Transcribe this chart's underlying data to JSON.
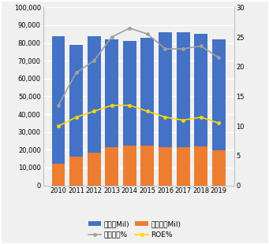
{
  "years": [
    2010,
    2011,
    2012,
    2013,
    2014,
    2015,
    2016,
    2017,
    2018,
    2019
  ],
  "revenue": [
    84000,
    79000,
    84000,
    82000,
    81000,
    83000,
    86000,
    86000,
    85000,
    82000
  ],
  "net_income": [
    12000,
    16000,
    18500,
    21500,
    22500,
    22500,
    21500,
    21500,
    22000,
    19500
  ],
  "net_margin": [
    13.5,
    19.0,
    21.0,
    25.0,
    26.5,
    25.5,
    23.0,
    23.0,
    23.5,
    21.5
  ],
  "roe": [
    10.0,
    11.5,
    12.5,
    13.5,
    13.5,
    12.5,
    11.5,
    11.0,
    11.5,
    10.5
  ],
  "bar_color_revenue": "#4472C4",
  "bar_color_net_income": "#ED7D31",
  "line_color_margin": "#A0A0A0",
  "line_color_roe": "#FFD700",
  "ylim_left": [
    0,
    100000
  ],
  "ylim_right": [
    0,
    30
  ],
  "yticks_left": [
    0,
    10000,
    20000,
    30000,
    40000,
    50000,
    60000,
    70000,
    80000,
    90000,
    100000
  ],
  "yticks_right": [
    0,
    5,
    10,
    15,
    20,
    25,
    30
  ],
  "legend_labels": [
    "売上（Mil)",
    "結純益（Mil)",
    "結純益率%",
    "ROE%"
  ],
  "background_color": "#f0f0f0",
  "grid_color": "#ffffff",
  "border_color": "#c0c0c0"
}
